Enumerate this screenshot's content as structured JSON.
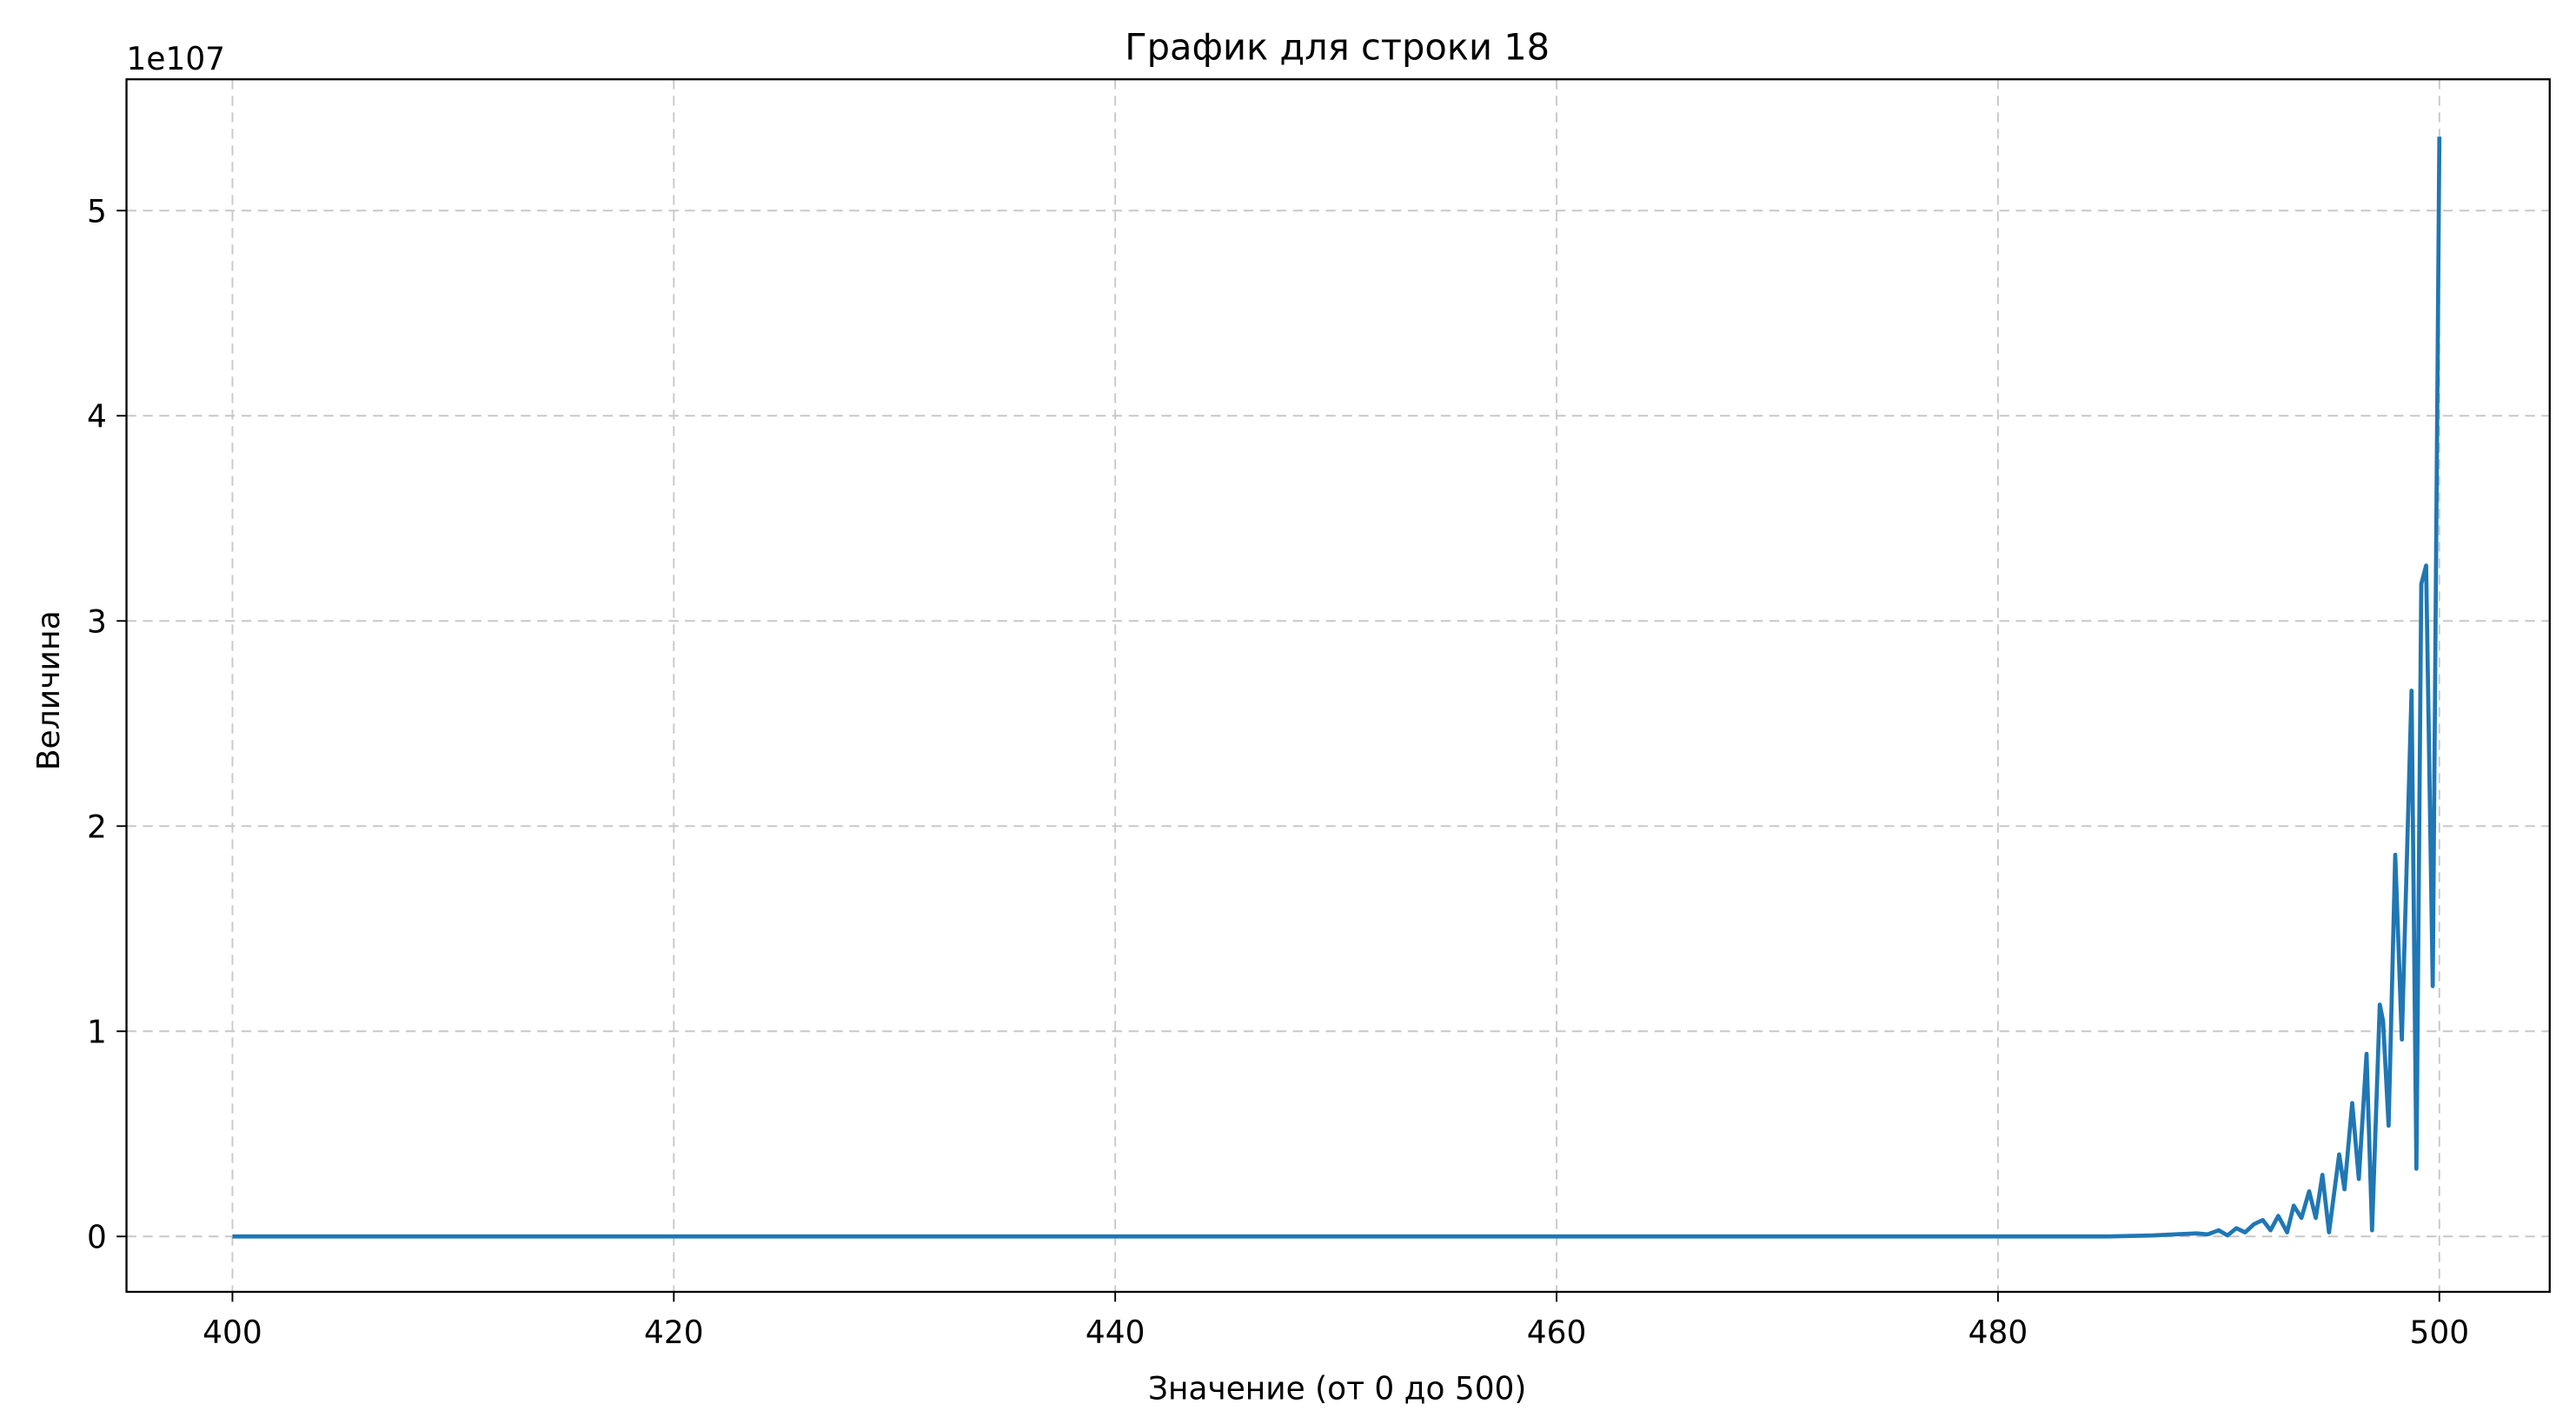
{
  "chart_data": {
    "type": "line",
    "title": "График для строки 18",
    "x_label": "Значение (от 0 до 500)",
    "y_label": "Величина",
    "y_offset_label": "1e107",
    "x": [
      400,
      485,
      487,
      488,
      489,
      489.5,
      490,
      490.4,
      490.8,
      491.2,
      491.6,
      492.0,
      492.35,
      492.7,
      493.1,
      493.4,
      493.75,
      494.1,
      494.4,
      494.7,
      495.0,
      495.46,
      495.7,
      496.05,
      496.35,
      496.7,
      496.95,
      497.3,
      497.45,
      497.7,
      498.0,
      498.3,
      498.74,
      498.96,
      499.18,
      499.4,
      499.7,
      500
    ],
    "series": [
      {
        "name": "line",
        "color": "#1f77b4",
        "values": [
          0,
          0,
          0.005,
          0.01,
          0.015,
          0.01,
          0.03,
          0.005,
          0.04,
          0.02,
          0.06,
          0.08,
          0.03,
          0.1,
          0.02,
          0.15,
          0.09,
          0.22,
          0.09,
          0.3,
          0.02,
          0.4,
          0.23,
          0.65,
          0.28,
          0.89,
          0.03,
          1.13,
          1.05,
          0.54,
          1.86,
          0.96,
          2.66,
          0.33,
          3.18,
          3.27,
          1.22,
          5.36
        ]
      }
    ],
    "xlim": [
      395.2,
      505
    ],
    "ylim": [
      -0.27,
      5.64
    ],
    "xticks": [
      400,
      420,
      440,
      460,
      480,
      500
    ],
    "yticks": [
      0,
      1,
      2,
      3,
      4,
      5
    ],
    "grid": true
  }
}
